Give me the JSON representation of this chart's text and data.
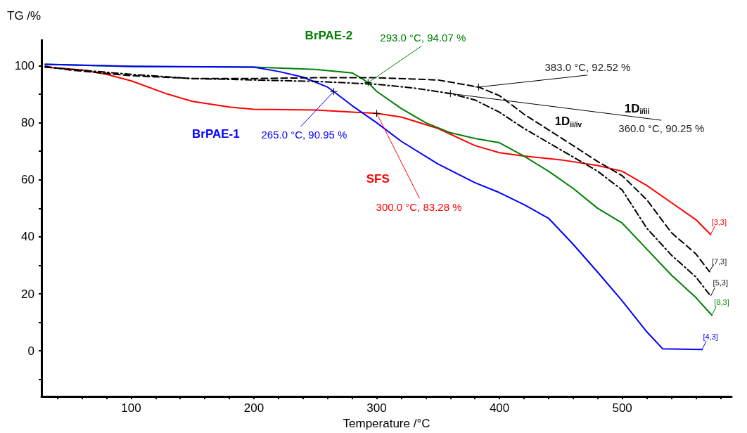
{
  "chart_data": {
    "type": "line",
    "xlabel": "Temperature /°C",
    "ylabel": "TG /%",
    "xlim": [
      27,
      589
    ],
    "ylim": [
      -16,
      109
    ],
    "xticks": [
      {
        "value": 40,
        "label": null
      },
      {
        "value": 60,
        "label": null
      },
      {
        "value": 80,
        "label": null
      },
      100,
      {
        "value": 120,
        "label": null
      },
      {
        "value": 140,
        "label": null
      },
      {
        "value": 160,
        "label": null
      },
      {
        "value": 180,
        "label": null
      },
      200,
      {
        "value": 220,
        "label": null
      },
      {
        "value": 240,
        "label": null
      },
      {
        "value": 260,
        "label": null
      },
      {
        "value": 280,
        "label": null
      },
      300,
      {
        "value": 320,
        "label": null
      },
      {
        "value": 340,
        "label": null
      },
      {
        "value": 360,
        "label": null
      },
      {
        "value": 380,
        "label": null
      },
      400,
      {
        "value": 420,
        "label": null
      },
      {
        "value": 440,
        "label": null
      },
      {
        "value": 460,
        "label": null
      },
      {
        "value": 480,
        "label": null
      },
      500,
      {
        "value": 520,
        "label": null
      },
      {
        "value": 540,
        "label": null
      },
      {
        "value": 560,
        "label": null
      },
      {
        "value": 580,
        "label": null
      }
    ],
    "yticks": [
      {
        "value": -10,
        "label": null
      },
      0,
      {
        "value": 10,
        "label": null
      },
      20,
      {
        "value": 30,
        "label": null
      },
      40,
      {
        "value": 50,
        "label": null
      },
      60,
      {
        "value": 70,
        "label": null
      },
      80,
      {
        "value": 90,
        "label": null
      },
      100
    ],
    "grid": false,
    "legend": false,
    "marker": "none",
    "series": [
      {
        "name": "SFS",
        "color": "#ff0000",
        "line_style": "solid",
        "x": [
          30,
          60,
          80,
          100,
          130,
          150,
          180,
          200,
          250,
          300,
          320,
          350,
          380,
          400,
          420,
          450,
          480,
          500,
          520,
          540,
          560,
          572
        ],
        "values": [
          99.5,
          98.5,
          97,
          94.7,
          90,
          87.5,
          85.5,
          84.7,
          84.5,
          83.28,
          82,
          78,
          72,
          69.5,
          68.3,
          67,
          65,
          63,
          58,
          52,
          46,
          40.8
        ]
      },
      {
        "name": "BrPAE-2",
        "color": "#008000",
        "line_style": "solid",
        "x": [
          30,
          100,
          200,
          250,
          280,
          288,
          293,
          300,
          320,
          340,
          360,
          380,
          400,
          420,
          440,
          460,
          480,
          500,
          520,
          540,
          560,
          573
        ],
        "values": [
          100.5,
          99.7,
          99.5,
          98.7,
          97.5,
          95.5,
          94.07,
          91,
          85,
          80,
          76.5,
          74.5,
          73,
          68.3,
          63,
          57,
          50,
          44.8,
          35.7,
          26.6,
          18.7,
          12.5
        ]
      },
      {
        "name": "BrPAE-1",
        "color": "#0000ff",
        "line_style": "solid",
        "x": [
          30,
          100,
          200,
          220,
          240,
          260,
          265,
          280,
          300,
          320,
          350,
          380,
          400,
          420,
          440,
          460,
          480,
          500,
          520,
          533,
          565
        ],
        "values": [
          100.5,
          99.8,
          99.5,
          98,
          96,
          92.5,
          90.95,
          86,
          80,
          73.5,
          65.5,
          59,
          55.5,
          51.3,
          46.5,
          37.4,
          27.6,
          17.5,
          6.7,
          0.7,
          0.5
        ]
      },
      {
        "name": "1D$_{ii/iv}$",
        "color": "#000000",
        "line_style": "dashed",
        "x": [
          30,
          50,
          100,
          150,
          200,
          250,
          300,
          350,
          383,
          400,
          420,
          440,
          460,
          480,
          500,
          520,
          540,
          560,
          571
        ],
        "values": [
          99.8,
          98.5,
          96.5,
          95.5,
          95.5,
          95.8,
          95.8,
          95,
          92.52,
          89.5,
          83,
          77.5,
          72,
          66.4,
          61.4,
          53,
          41.5,
          34,
          27.8
        ]
      },
      {
        "name": "1D$_{i/iii}$",
        "color": "#000000",
        "line_style": "dashdot",
        "x": [
          30,
          100,
          150,
          200,
          250,
          300,
          330,
          360,
          380,
          400,
          420,
          440,
          460,
          480,
          500,
          520,
          540,
          560,
          572
        ],
        "values": [
          99.5,
          97,
          95.5,
          95,
          94.5,
          93.5,
          92.2,
          90.25,
          88,
          83.7,
          78,
          73,
          68,
          63,
          56.4,
          43,
          33.6,
          25.9,
          19.2
        ]
      }
    ],
    "annotations": [
      {
        "text": "293.0 °C, 94.07 %",
        "x": 293,
        "y": 94.07
      },
      {
        "text": "383.0 °C, 92.52 %",
        "x": 383,
        "y": 92.52
      },
      {
        "text": "360.0 °C, 90.25 %",
        "x": 360,
        "y": 90.25
      },
      {
        "text": "265.0 °C, 90.95 %",
        "x": 265,
        "y": 90.95
      },
      {
        "text": "300.0 °C, 83.28 %",
        "x": 300,
        "y": 83.28
      },
      {
        "text": "[3,3]",
        "x": 572,
        "y": 40.8
      },
      {
        "text": "[7,3]",
        "x": 571,
        "y": 27.8
      },
      {
        "text": "[5,3]",
        "x": 572,
        "y": 19.2
      },
      {
        "text": "[8,3]",
        "x": 573,
        "y": 12.5
      },
      {
        "text": "[4,3]",
        "x": 565,
        "y": 0.5
      }
    ]
  }
}
